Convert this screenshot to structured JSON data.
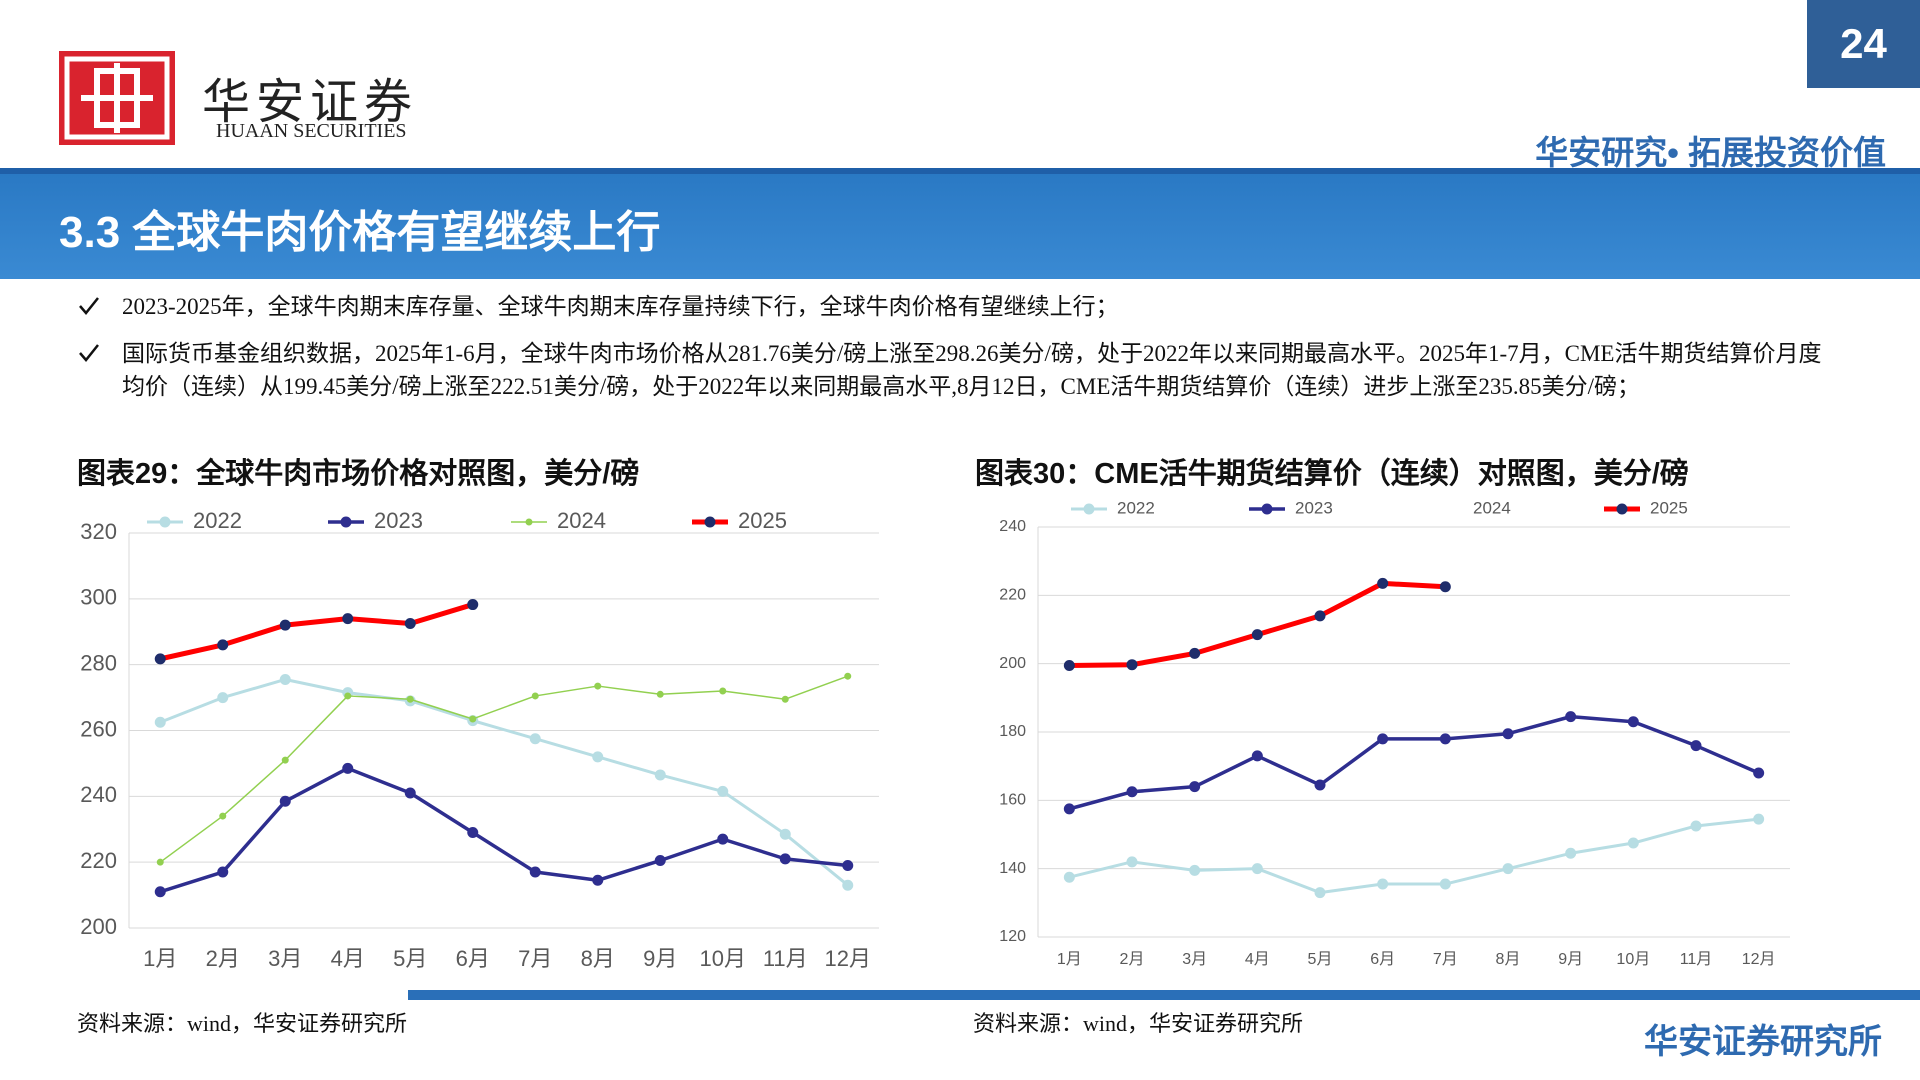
{
  "header": {
    "logo_cn": "华安证券",
    "logo_en": "HUAAN SECURITIES",
    "page_number": "24",
    "slogan": "华安研究• 拓展投资价值"
  },
  "section_title": "3.3 全球牛肉价格有望继续上行",
  "bullets": [
    "2023-2025年，全球牛肉期末库存量、全球牛肉期末库存量持续下行，全球牛肉价格有望继续上行；",
    "国际货币基金组织数据，2025年1-6月，全球牛肉市场价格从281.76美分/磅上涨至298.26美分/磅，处于2022年以来同期最高水平。2025年1-7月，CME活牛期货结算价月度均价（连续）从199.45美分/磅上涨至222.51美分/磅，处于2022年以来同期最高水平,8月12日，CME活牛期货结算价（连续）进步上涨至235.85美分/磅；"
  ],
  "chart_data": [
    {
      "type": "line",
      "title": "图表29：全球牛肉市场价格对照图，美分/磅",
      "source": "资料来源：wind，华安证券研究所",
      "categories": [
        "1月",
        "2月",
        "3月",
        "4月",
        "5月",
        "6月",
        "7月",
        "8月",
        "9月",
        "10月",
        "11月",
        "12月"
      ],
      "ylim": [
        200,
        320
      ],
      "yticks": [
        200,
        220,
        240,
        260,
        280,
        300,
        320
      ],
      "grid": true,
      "series": [
        {
          "name": "2022",
          "color": "#b7dde3",
          "marker_color": "#b7dde3",
          "values": [
            262.5,
            270,
            275.5,
            271.5,
            269,
            263,
            257.5,
            252,
            246.5,
            241.5,
            228.5,
            213
          ]
        },
        {
          "name": "2023",
          "color": "#2e2e8f",
          "marker_color": "#2e2e8f",
          "values": [
            211,
            217,
            238.5,
            248.5,
            241,
            229,
            217,
            214.5,
            220.5,
            227,
            221,
            219
          ]
        },
        {
          "name": "2024",
          "color": "#92d050",
          "marker_color": "#92d050",
          "values": [
            220,
            234,
            251,
            270.5,
            269.5,
            263.5,
            270.5,
            273.5,
            271,
            272,
            269.5,
            276.5
          ]
        },
        {
          "name": "2025",
          "color": "#ff0000",
          "marker_color": "#1f2d6b",
          "values": [
            281.76,
            286,
            292,
            294,
            292.5,
            298.26,
            null,
            null,
            null,
            null,
            null,
            null
          ]
        }
      ]
    },
    {
      "type": "line",
      "title": "图表30：CME活牛期货结算价（连续）对照图，美分/磅",
      "source": "资料来源：wind，华安证券研究所",
      "categories": [
        "1月",
        "2月",
        "3月",
        "4月",
        "5月",
        "6月",
        "7月",
        "8月",
        "9月",
        "10月",
        "11月",
        "12月"
      ],
      "ylim": [
        120,
        240
      ],
      "yticks": [
        120,
        140,
        160,
        180,
        200,
        220,
        240
      ],
      "grid": true,
      "series": [
        {
          "name": "2022",
          "color": "#b7dde3",
          "marker_color": "#b7dde3",
          "values": [
            137.5,
            142,
            139.5,
            140,
            133,
            135.5,
            135.5,
            140,
            144.5,
            147.5,
            152.5,
            154.5
          ]
        },
        {
          "name": "2023",
          "color": "#2e2e8f",
          "marker_color": "#2e2e8f",
          "values": [
            157.5,
            162.5,
            164,
            173,
            164.5,
            178,
            178,
            179.5,
            184.5,
            183,
            176,
            168
          ]
        },
        {
          "name": "2024",
          "color": "#ffffff",
          "marker_color": "#ffffff",
          "values": [
            null,
            null,
            null,
            null,
            null,
            null,
            null,
            null,
            null,
            null,
            null,
            null
          ]
        },
        {
          "name": "2025",
          "color": "#ff0000",
          "marker_color": "#1f2d6b",
          "values": [
            199.45,
            199.7,
            203,
            208.5,
            214,
            223.5,
            222.51,
            null,
            null,
            null,
            null,
            null
          ]
        }
      ]
    }
  ],
  "footer": "华安证券研究所"
}
